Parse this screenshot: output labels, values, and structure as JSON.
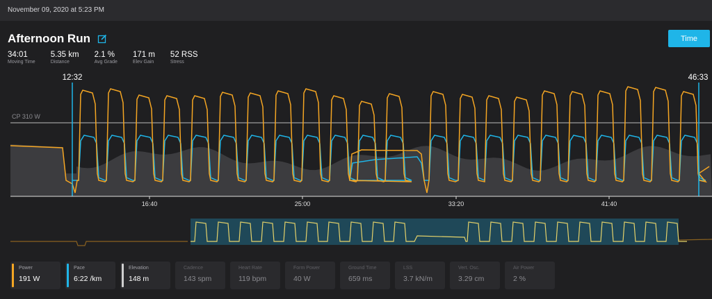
{
  "header": {
    "date": "November 09, 2020 at 5:23 PM"
  },
  "activity": {
    "title": "Afternoon Run"
  },
  "time_button": "Time",
  "stats": [
    {
      "value": "34:01",
      "label": "Moving Time"
    },
    {
      "value": "5.35 km",
      "label": "Distance"
    },
    {
      "value": "2.1 %",
      "label": "Avg Grade"
    },
    {
      "value": "171 m",
      "label": "Elev Gain"
    },
    {
      "value": "52 RSS",
      "label": "Stress"
    }
  ],
  "chart": {
    "cp_label": "CP 310 W",
    "sel_start": "12:32",
    "sel_end": "46:33",
    "ticks": [
      "16:40",
      "25:00",
      "33:20",
      "41:40"
    ]
  },
  "colors": {
    "power": "#f5a623",
    "pace": "#1fb5e8",
    "elevation": "#cfcfcf",
    "accent": "#1fb5e8"
  },
  "metrics": [
    {
      "label": "Power",
      "value": "191 W",
      "color": "#f5a623",
      "active": true
    },
    {
      "label": "Pace",
      "value": "6:22 /km",
      "color": "#1fb5e8",
      "active": true
    },
    {
      "label": "Elevation",
      "value": "148 m",
      "color": "#cfcfcf",
      "active": true
    },
    {
      "label": "Cadence",
      "value": "143 spm",
      "active": false
    },
    {
      "label": "Heart Rate",
      "value": "119 bpm",
      "active": false
    },
    {
      "label": "Form Power",
      "value": "40 W",
      "active": false
    },
    {
      "label": "Ground Time",
      "value": "659 ms",
      "active": false
    },
    {
      "label": "LSS",
      "value": "3.7 kN/m",
      "active": false
    },
    {
      "label": "Vert. Osc.",
      "value": "3.29 cm",
      "active": false
    },
    {
      "label": "Air Power",
      "value": "2 %",
      "active": false
    }
  ]
}
